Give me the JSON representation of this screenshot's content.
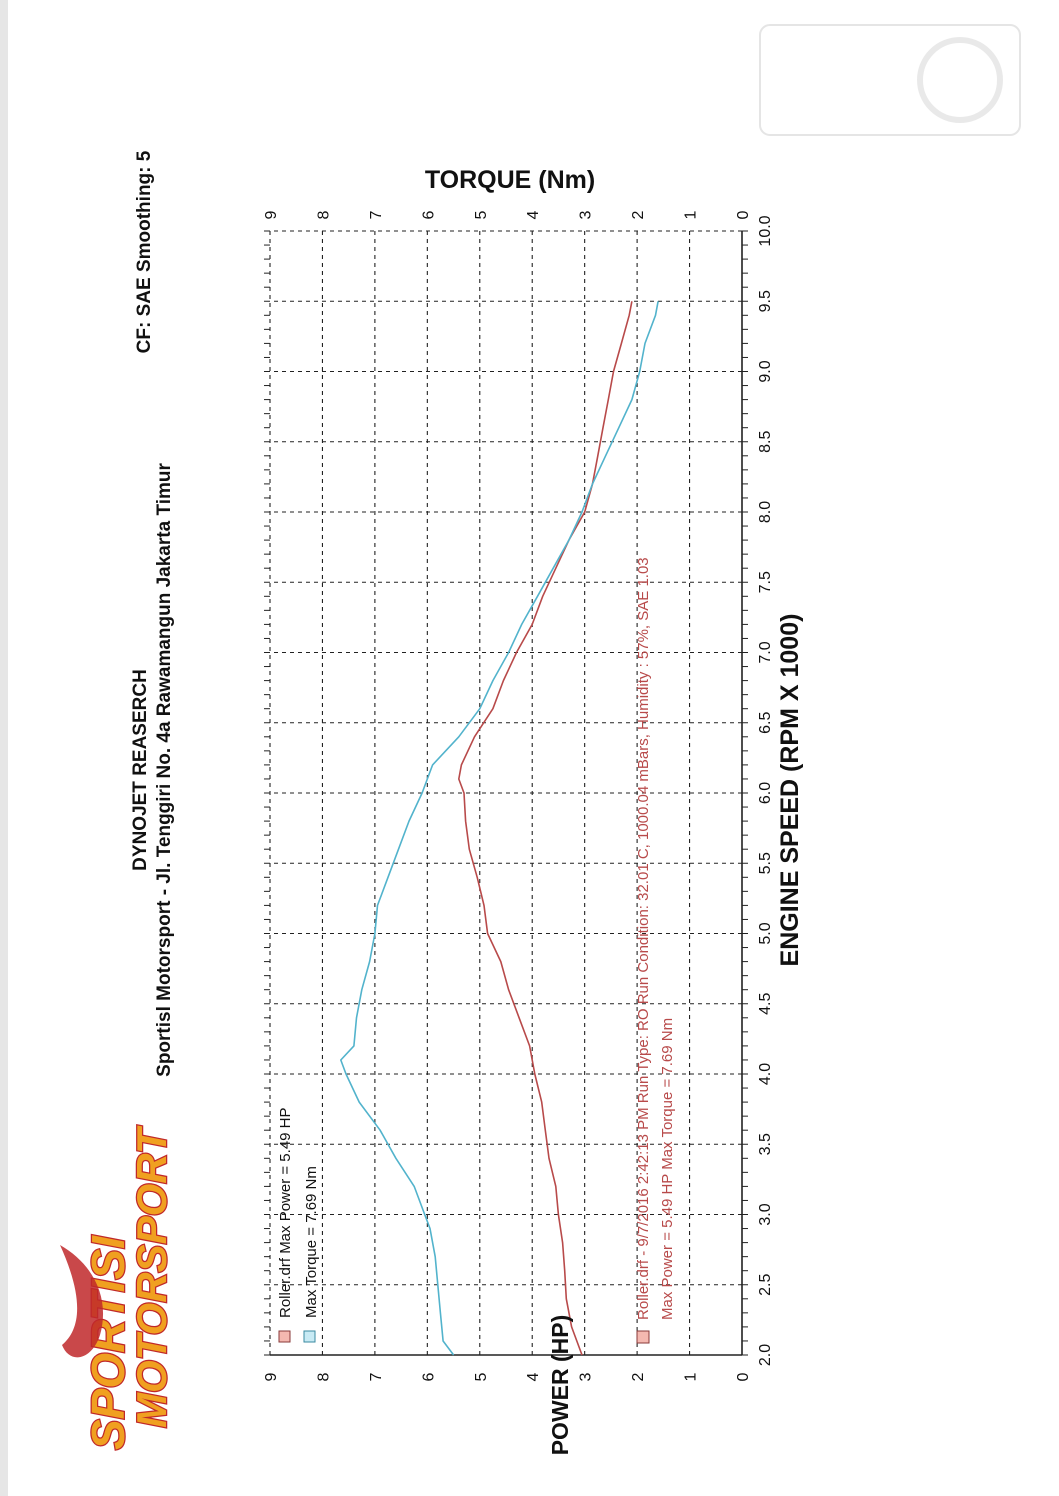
{
  "header": {
    "title": "DYNOJET REASERCH",
    "address": "Sportisl Motorsport - Jl. Tenggiri No. 4a Rawamangun Jakarta Timur",
    "settings": "CF: SAE Smoothing: 5"
  },
  "logo": {
    "line1": "SPORTISI",
    "line2": "MOTORSPORT"
  },
  "colors": {
    "power": "#b84a4a",
    "torque": "#52b3cc",
    "grid": "#222222",
    "logo_orange": "#f0a020",
    "logo_red": "#c0282a"
  },
  "chart_data": {
    "type": "line",
    "title": "",
    "xlabel": "ENGINE SPEED (RPM X 1000)",
    "ylabel_left": "POWER (HP)",
    "ylabel_right": "TORQUE (Nm)",
    "xlim": [
      2.0,
      10.0
    ],
    "ylim_left": [
      0,
      9
    ],
    "ylim_right": [
      0,
      9
    ],
    "x_ticks": [
      "2.0",
      "2.5",
      "3.0",
      "3.5",
      "4.0",
      "4.5",
      "5.0",
      "5.5",
      "6.0",
      "6.5",
      "7.0",
      "7.5",
      "8.0",
      "8.5",
      "9.0",
      "9.5",
      "10.0"
    ],
    "y_ticks_left": [
      "0",
      "1",
      "2",
      "3",
      "4",
      "5",
      "6",
      "7",
      "8",
      "9"
    ],
    "y_ticks_right": [
      "0",
      "1",
      "2",
      "3",
      "4",
      "5",
      "6",
      "7",
      "8",
      "9"
    ],
    "grid": true,
    "series": [
      {
        "key": "power",
        "axis": "left",
        "x": [
          2.0,
          2.2,
          2.4,
          2.6,
          2.8,
          3.0,
          3.2,
          3.4,
          3.6,
          3.8,
          4.0,
          4.2,
          4.4,
          4.6,
          4.8,
          5.0,
          5.2,
          5.4,
          5.6,
          5.8,
          6.0,
          6.1,
          6.2,
          6.4,
          6.6,
          6.8,
          7.0,
          7.2,
          7.4,
          7.6,
          7.8,
          8.0,
          8.2,
          8.4,
          8.6,
          8.8,
          9.0,
          9.2,
          9.4,
          9.5
        ],
        "values": [
          3.05,
          3.25,
          3.35,
          3.38,
          3.42,
          3.5,
          3.55,
          3.68,
          3.75,
          3.82,
          3.95,
          4.05,
          4.25,
          4.45,
          4.6,
          4.85,
          4.92,
          5.05,
          5.2,
          5.27,
          5.3,
          5.4,
          5.35,
          5.1,
          4.75,
          4.55,
          4.3,
          4.0,
          3.8,
          3.55,
          3.3,
          3.0,
          2.85,
          2.75,
          2.65,
          2.55,
          2.45,
          2.3,
          2.15,
          2.1
        ]
      },
      {
        "key": "torque",
        "axis": "right",
        "x": [
          2.0,
          2.1,
          2.3,
          2.5,
          2.7,
          2.9,
          3.0,
          3.2,
          3.4,
          3.6,
          3.8,
          4.0,
          4.1,
          4.2,
          4.4,
          4.6,
          4.8,
          5.0,
          5.2,
          5.4,
          5.6,
          5.8,
          6.0,
          6.2,
          6.4,
          6.6,
          6.8,
          7.0,
          7.2,
          7.4,
          7.6,
          7.8,
          8.0,
          8.2,
          8.4,
          8.6,
          8.8,
          9.0,
          9.2,
          9.4,
          9.5
        ],
        "values": [
          5.5,
          5.7,
          5.75,
          5.8,
          5.85,
          5.95,
          6.05,
          6.25,
          6.6,
          6.9,
          7.3,
          7.55,
          7.65,
          7.4,
          7.35,
          7.25,
          7.1,
          7.0,
          6.95,
          6.75,
          6.55,
          6.35,
          6.1,
          5.9,
          5.4,
          5.0,
          4.75,
          4.45,
          4.2,
          3.9,
          3.6,
          3.3,
          3.05,
          2.85,
          2.6,
          2.35,
          2.1,
          1.95,
          1.85,
          1.65,
          1.6
        ]
      }
    ],
    "legend": {
      "placement": "top-left",
      "items": [
        {
          "label": "Roller.drf Max Power = 5.49 HP",
          "color": "#b84a4a"
        },
        {
          "label": "Max Torque = 7.69 Nm",
          "color": "#52b3cc"
        }
      ]
    },
    "annotation": {
      "line1": "Roller.drf - 9/7/2016 2:42:13 PM Run Type: RO Run Condition: 32.01 C, 1000.04 mBars, Humidity : 57%, SAE 1.03",
      "line2": "Max Power = 5.49 HP Max Torque = 7.69 Nm"
    }
  }
}
